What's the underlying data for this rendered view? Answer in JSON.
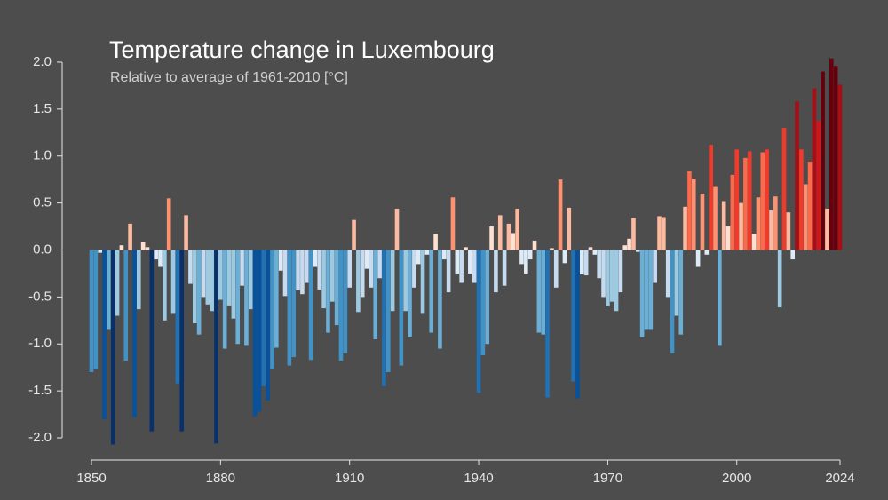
{
  "chart_data": {
    "type": "bar",
    "title": "Temperature change in Luxembourg",
    "subtitle": "Relative to average of 1961-2010  [°C]",
    "x": [
      1850,
      1851,
      1852,
      1853,
      1854,
      1855,
      1856,
      1857,
      1858,
      1859,
      1860,
      1861,
      1862,
      1863,
      1864,
      1865,
      1866,
      1867,
      1868,
      1869,
      1870,
      1871,
      1872,
      1873,
      1874,
      1875,
      1876,
      1877,
      1878,
      1879,
      1880,
      1881,
      1882,
      1883,
      1884,
      1885,
      1886,
      1887,
      1888,
      1889,
      1890,
      1891,
      1892,
      1893,
      1894,
      1895,
      1896,
      1897,
      1898,
      1899,
      1900,
      1901,
      1902,
      1903,
      1904,
      1905,
      1906,
      1907,
      1908,
      1909,
      1910,
      1911,
      1912,
      1913,
      1914,
      1915,
      1916,
      1917,
      1918,
      1919,
      1920,
      1921,
      1922,
      1923,
      1924,
      1925,
      1926,
      1927,
      1928,
      1929,
      1930,
      1931,
      1932,
      1933,
      1934,
      1935,
      1936,
      1937,
      1938,
      1939,
      1940,
      1941,
      1942,
      1943,
      1944,
      1945,
      1946,
      1947,
      1948,
      1949,
      1950,
      1951,
      1952,
      1953,
      1954,
      1955,
      1956,
      1957,
      1958,
      1959,
      1960,
      1961,
      1962,
      1963,
      1964,
      1965,
      1966,
      1967,
      1968,
      1969,
      1970,
      1971,
      1972,
      1973,
      1974,
      1975,
      1976,
      1977,
      1978,
      1979,
      1980,
      1981,
      1982,
      1983,
      1984,
      1985,
      1986,
      1987,
      1988,
      1989,
      1990,
      1991,
      1992,
      1993,
      1994,
      1995,
      1996,
      1997,
      1998,
      1999,
      2000,
      2001,
      2002,
      2003,
      2004,
      2005,
      2006,
      2007,
      2008,
      2009,
      2010,
      2011,
      2012,
      2013,
      2014,
      2015,
      2016,
      2017,
      2018,
      2019,
      2020,
      2021,
      2022,
      2023,
      2024
    ],
    "values": [
      -1.3,
      -1.27,
      -0.03,
      -1.8,
      -0.85,
      -2.07,
      -0.7,
      0.05,
      -1.18,
      0.28,
      -1.78,
      -0.63,
      0.09,
      0.03,
      -1.93,
      -0.1,
      -0.18,
      -0.75,
      0.55,
      -0.68,
      -1.42,
      -1.93,
      0.37,
      -0.36,
      -0.78,
      -0.9,
      -0.5,
      -0.58,
      -0.65,
      -2.06,
      -0.53,
      -1.05,
      -0.59,
      -0.73,
      -1.0,
      -0.38,
      -1.02,
      -0.63,
      -1.77,
      -1.72,
      -1.45,
      -1.6,
      -1.27,
      -1.04,
      -0.22,
      -0.49,
      -1.23,
      -1.14,
      -0.43,
      -0.47,
      -0.35,
      -1.17,
      -0.18,
      -0.42,
      -0.62,
      -0.88,
      -0.55,
      -0.8,
      -1.18,
      -1.1,
      -0.4,
      0.32,
      -0.66,
      -0.5,
      -0.2,
      -0.4,
      -0.95,
      -0.3,
      -1.45,
      -1.3,
      -0.65,
      0.44,
      -1.23,
      -0.65,
      -0.93,
      -0.4,
      -0.15,
      -0.68,
      -0.05,
      -0.88,
      0.17,
      -1.05,
      -0.1,
      -0.45,
      0.56,
      -0.25,
      -0.35,
      0.03,
      -0.25,
      -0.35,
      -1.52,
      -1.12,
      -1.0,
      0.25,
      -0.45,
      0.37,
      -0.38,
      0.28,
      0.18,
      0.44,
      -0.15,
      -0.25,
      -0.1,
      0.1,
      -0.88,
      -0.9,
      -1.57,
      0.02,
      -0.4,
      0.75,
      -0.14,
      0.45,
      -1.4,
      -1.58,
      -0.26,
      -0.27,
      0.03,
      -0.05,
      -0.3,
      -0.5,
      -0.6,
      -0.55,
      -0.65,
      -0.45,
      0.05,
      0.12,
      0.34,
      -0.02,
      -0.93,
      -0.85,
      -0.85,
      -0.35,
      0.36,
      0.35,
      -0.5,
      -1.1,
      -0.7,
      -0.9,
      0.46,
      0.84,
      0.76,
      -0.18,
      0.6,
      -0.05,
      1.12,
      0.68,
      -1.02,
      0.52,
      0.25,
      0.8,
      1.07,
      0.5,
      0.98,
      1.05,
      0.17,
      0.56,
      1.04,
      1.07,
      0.42,
      0.57,
      -0.61,
      1.3,
      0.4,
      -0.1,
      1.58,
      1.07,
      0.7,
      0.94,
      1.72,
      1.37,
      1.9,
      0.44,
      2.04,
      1.96,
      1.76
    ],
    "palette": [
      "#08306b",
      "#08519c",
      "#2171b5",
      "#4292c6",
      "#6baed6",
      "#9ecae1",
      "#c6dbef",
      "#deebf7",
      "#fee0d2",
      "#fcbba1",
      "#fc9272",
      "#fb6a4a",
      "#ef3b2c",
      "#cb181d",
      "#a50f15",
      "#67000d"
    ],
    "xlim": [
      1850,
      2024
    ],
    "xticks": [
      1850,
      1880,
      1910,
      1940,
      1970,
      2000,
      2024
    ],
    "ylim": [
      -2.1,
      2.1
    ],
    "yticks": [
      {
        "value": -2,
        "label": "-2.0"
      },
      {
        "value": -1.5,
        "label": "-1.5"
      },
      {
        "value": -1,
        "label": "-1.0"
      },
      {
        "value": -0.5,
        "label": "-0.5"
      },
      {
        "value": 0,
        "label": "0.0"
      },
      {
        "value": 0.5,
        "label": "0.5"
      },
      {
        "value": 1,
        "label": "1.0"
      },
      {
        "value": 1.5,
        "label": "1.5"
      },
      {
        "value": 2,
        "label": "2.0"
      }
    ],
    "grid": false
  }
}
